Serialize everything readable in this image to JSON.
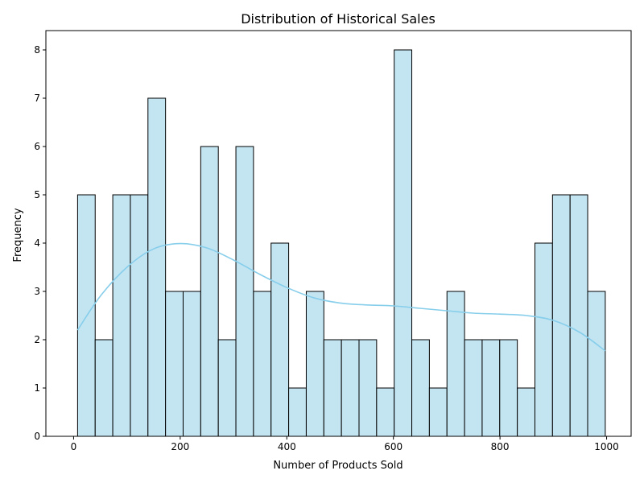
{
  "chart_data": {
    "type": "histogram",
    "title": "Distribution of Historical Sales",
    "xlabel": "Number of Products Sold",
    "ylabel": "Frequency",
    "xlim": [
      -52,
      1046
    ],
    "ylim": [
      0,
      8.4
    ],
    "x_ticks": [
      0,
      200,
      400,
      600,
      800,
      1000
    ],
    "y_ticks": [
      0,
      1,
      2,
      3,
      4,
      5,
      6,
      7,
      8
    ],
    "bin_start": 7.5,
    "bin_width": 33,
    "bins": [
      {
        "x0": 7.5,
        "x1": 40.5,
        "count": 5
      },
      {
        "x0": 40.5,
        "x1": 73.5,
        "count": 2
      },
      {
        "x0": 73.5,
        "x1": 106.5,
        "count": 5
      },
      {
        "x0": 106.5,
        "x1": 139.5,
        "count": 5
      },
      {
        "x0": 139.5,
        "x1": 172.5,
        "count": 7
      },
      {
        "x0": 172.5,
        "x1": 205.5,
        "count": 3
      },
      {
        "x0": 205.5,
        "x1": 238.5,
        "count": 3
      },
      {
        "x0": 238.5,
        "x1": 271.5,
        "count": 6
      },
      {
        "x0": 271.5,
        "x1": 304.5,
        "count": 2
      },
      {
        "x0": 304.5,
        "x1": 337.5,
        "count": 6
      },
      {
        "x0": 337.5,
        "x1": 370.5,
        "count": 3
      },
      {
        "x0": 370.5,
        "x1": 403.5,
        "count": 4
      },
      {
        "x0": 403.5,
        "x1": 436.5,
        "count": 1
      },
      {
        "x0": 436.5,
        "x1": 469.5,
        "count": 3
      },
      {
        "x0": 469.5,
        "x1": 502.5,
        "count": 2
      },
      {
        "x0": 502.5,
        "x1": 535.5,
        "count": 2
      },
      {
        "x0": 535.5,
        "x1": 568.5,
        "count": 2
      },
      {
        "x0": 568.5,
        "x1": 601.5,
        "count": 1
      },
      {
        "x0": 601.5,
        "x1": 634.5,
        "count": 8
      },
      {
        "x0": 634.5,
        "x1": 667.5,
        "count": 2
      },
      {
        "x0": 667.5,
        "x1": 700.5,
        "count": 1
      },
      {
        "x0": 700.5,
        "x1": 733.5,
        "count": 3
      },
      {
        "x0": 733.5,
        "x1": 766.5,
        "count": 2
      },
      {
        "x0": 766.5,
        "x1": 799.5,
        "count": 2
      },
      {
        "x0": 799.5,
        "x1": 832.5,
        "count": 2
      },
      {
        "x0": 832.5,
        "x1": 865.5,
        "count": 1
      },
      {
        "x0": 865.5,
        "x1": 898.5,
        "count": 4
      },
      {
        "x0": 898.5,
        "x1": 931.5,
        "count": 5
      },
      {
        "x0": 931.5,
        "x1": 964.5,
        "count": 5
      },
      {
        "x0": 964.5,
        "x1": 997.5,
        "count": 3
      }
    ],
    "kde": {
      "x": [
        7.5,
        50,
        100,
        150,
        200,
        250,
        300,
        350,
        400,
        450,
        500,
        550,
        600,
        650,
        700,
        750,
        800,
        850,
        900,
        950,
        997.5
      ],
      "y": [
        2.2,
        2.9,
        3.5,
        3.88,
        3.99,
        3.9,
        3.65,
        3.35,
        3.08,
        2.87,
        2.76,
        2.72,
        2.7,
        2.65,
        2.6,
        2.55,
        2.53,
        2.5,
        2.4,
        2.15,
        1.77
      ]
    },
    "colors": {
      "bar_fill": "#c3e5f2",
      "bar_edge": "#000000",
      "kde_line": "#87ceeb",
      "axes": "#000000",
      "background": "#ffffff"
    },
    "grid": false,
    "legend": "none"
  }
}
